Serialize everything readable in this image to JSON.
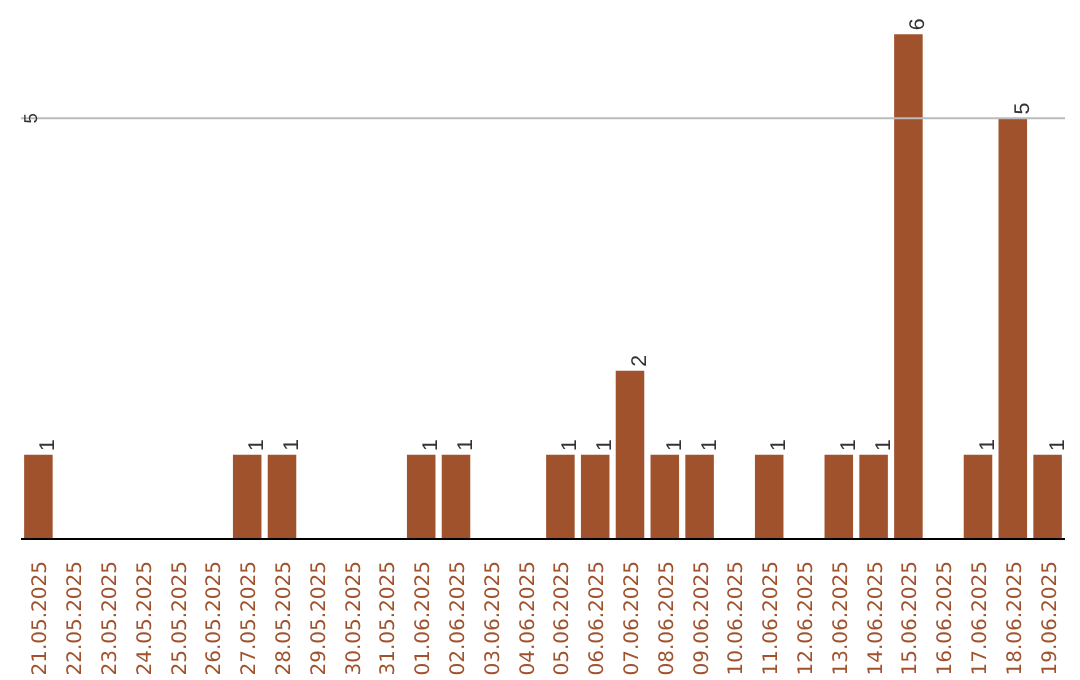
{
  "chart_data": {
    "type": "bar",
    "categories": [
      "21.05.2025",
      "22.05.2025",
      "23.05.2025",
      "24.05.2025",
      "25.05.2025",
      "26.05.2025",
      "27.05.2025",
      "28.05.2025",
      "29.05.2025",
      "30.05.2025",
      "31.05.2025",
      "01.06.2025",
      "02.06.2025",
      "03.06.2025",
      "04.06.2025",
      "05.06.2025",
      "06.06.2025",
      "07.06.2025",
      "08.06.2025",
      "09.06.2025",
      "10.06.2025",
      "11.06.2025",
      "12.06.2025",
      "13.06.2025",
      "14.06.2025",
      "15.06.2025",
      "16.06.2025",
      "17.06.2025",
      "18.06.2025",
      "19.06.2025"
    ],
    "values": [
      1,
      0,
      0,
      0,
      0,
      0,
      1,
      1,
      0,
      0,
      0,
      1,
      1,
      0,
      0,
      1,
      1,
      2,
      1,
      1,
      0,
      1,
      0,
      1,
      1,
      6,
      0,
      1,
      5,
      1
    ],
    "value_labels": [
      "1",
      null,
      null,
      null,
      null,
      null,
      "1",
      "1",
      null,
      null,
      null,
      "1",
      "1",
      null,
      null,
      "1",
      "1",
      "2",
      "1",
      "1",
      null,
      "1",
      null,
      "1",
      "1",
      "6",
      null,
      "1",
      "5",
      "1"
    ],
    "color": "#a0522d",
    "ref_lines": [
      {
        "axis": "y",
        "value": 5,
        "label": "5",
        "color": "#bbbbbb"
      }
    ]
  }
}
